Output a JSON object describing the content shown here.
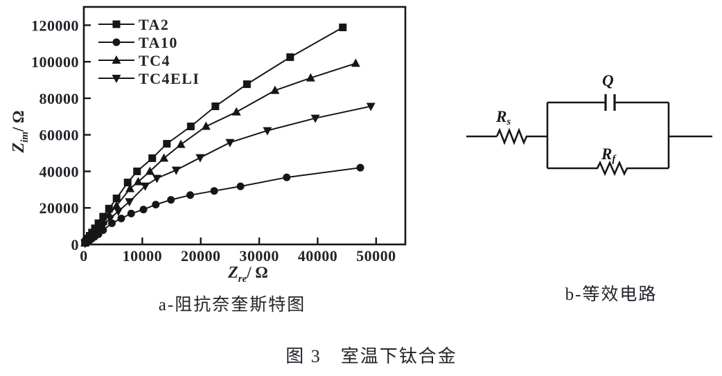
{
  "figure": {
    "caption": "图 3　室温下钛合金",
    "panel_a_caption": "a-阻抗奈奎斯特图",
    "panel_b_caption": "b-等效电路"
  },
  "chart_data": {
    "type": "scatter",
    "title": "",
    "xlabel_base": "Z",
    "xlabel_sub": "re",
    "xlabel_unit": "/ Ω",
    "ylabel_base": "Z",
    "ylabel_sub": "im",
    "ylabel_unit": "/ Ω",
    "xlim": [
      0,
      55000
    ],
    "ylim": [
      0,
      130000
    ],
    "x_ticks": [
      0,
      10000,
      20000,
      30000,
      40000,
      50000
    ],
    "y_ticks": [
      0,
      20000,
      40000,
      60000,
      80000,
      100000,
      120000
    ],
    "grid": false,
    "legend_position": "top-left",
    "series": [
      {
        "name": "TA2",
        "marker": "square",
        "points": [
          [
            200,
            900
          ],
          [
            400,
            1900
          ],
          [
            700,
            3200
          ],
          [
            1000,
            4700
          ],
          [
            1400,
            6500
          ],
          [
            1900,
            8800
          ],
          [
            2500,
            11600
          ],
          [
            3300,
            15200
          ],
          [
            4300,
            19600
          ],
          [
            5600,
            25200
          ],
          [
            7500,
            33900
          ],
          [
            9100,
            40000
          ],
          [
            11700,
            47200
          ],
          [
            14200,
            55100
          ],
          [
            18300,
            64600
          ],
          [
            22500,
            75600
          ],
          [
            27900,
            87700
          ],
          [
            35300,
            102500
          ],
          [
            44300,
            118800
          ]
        ]
      },
      {
        "name": "TA10",
        "marker": "circle",
        "points": [
          [
            300,
            700
          ],
          [
            600,
            1400
          ],
          [
            950,
            2200
          ],
          [
            1350,
            3100
          ],
          [
            1850,
            4200
          ],
          [
            2500,
            5600
          ],
          [
            3300,
            7800
          ],
          [
            4800,
            11600
          ],
          [
            6400,
            14200
          ],
          [
            8100,
            16900
          ],
          [
            10200,
            19100
          ],
          [
            12300,
            21800
          ],
          [
            14900,
            24400
          ],
          [
            18200,
            27000
          ],
          [
            22300,
            29300
          ],
          [
            26800,
            31800
          ],
          [
            34700,
            36700
          ],
          [
            47300,
            42000
          ]
        ]
      },
      {
        "name": "TC4",
        "marker": "triangle-up",
        "points": [
          [
            200,
            800
          ],
          [
            400,
            1600
          ],
          [
            700,
            2800
          ],
          [
            1000,
            3900
          ],
          [
            1400,
            5400
          ],
          [
            1900,
            7300
          ],
          [
            2500,
            9600
          ],
          [
            3300,
            12600
          ],
          [
            4300,
            16300
          ],
          [
            5600,
            21200
          ],
          [
            7900,
            30500
          ],
          [
            9300,
            34300
          ],
          [
            11300,
            40000
          ],
          [
            13700,
            47200
          ],
          [
            16600,
            54700
          ],
          [
            20900,
            64600
          ],
          [
            26100,
            72500
          ],
          [
            32700,
            84300
          ],
          [
            38800,
            91100
          ],
          [
            46500,
            99100
          ]
        ]
      },
      {
        "name": "TC4ELI",
        "marker": "triangle-down",
        "points": [
          [
            200,
            650
          ],
          [
            400,
            1350
          ],
          [
            700,
            2300
          ],
          [
            1000,
            3300
          ],
          [
            1400,
            4600
          ],
          [
            1900,
            6200
          ],
          [
            2600,
            8400
          ],
          [
            3400,
            10900
          ],
          [
            4500,
            14200
          ],
          [
            5900,
            18200
          ],
          [
            7800,
            23400
          ],
          [
            10500,
            32000
          ],
          [
            12500,
            36200
          ],
          [
            15800,
            40700
          ],
          [
            19900,
            47500
          ],
          [
            25000,
            55800
          ],
          [
            31400,
            62300
          ],
          [
            39600,
            69100
          ],
          [
            49100,
            75600
          ]
        ]
      }
    ]
  },
  "circuit": {
    "rs_base": "R",
    "rs_sub": "s",
    "q_label": "Q",
    "rf_base": "R",
    "rf_sub": "f"
  },
  "colors": {
    "line": "#161616",
    "text": "#23232b",
    "background": "#ffffff"
  }
}
